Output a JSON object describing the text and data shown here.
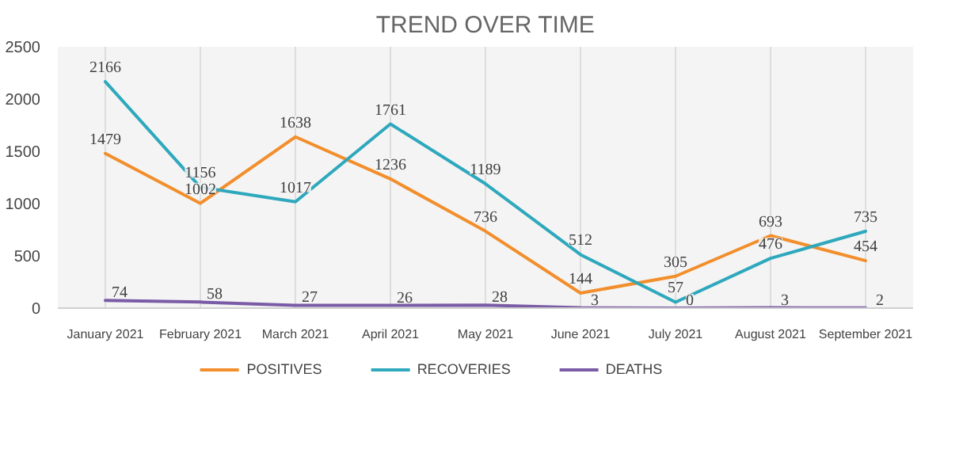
{
  "chart_data": {
    "type": "line",
    "title": "TREND OVER TIME",
    "categories": [
      "January 2021",
      "February 2021",
      "March 2021",
      "April 2021",
      "May 2021",
      "June 2021",
      "July 2021",
      "August 2021",
      "September 2021"
    ],
    "series": [
      {
        "name": "POSITIVES",
        "color": "#f28e2b",
        "values": [
          1479,
          1002,
          1638,
          1236,
          736,
          144,
          305,
          693,
          454
        ]
      },
      {
        "name": "RECOVERIES",
        "color": "#2ea8bd",
        "values": [
          2166,
          1156,
          1017,
          1761,
          1189,
          512,
          57,
          476,
          735
        ]
      },
      {
        "name": "DEATHS",
        "color": "#7a5ba6",
        "values": [
          74,
          58,
          27,
          26,
          28,
          3,
          0,
          3,
          2
        ]
      }
    ],
    "ylim": [
      0,
      2500
    ],
    "yticks": [
      0,
      500,
      1000,
      1500,
      2000,
      2500
    ],
    "grid": "x",
    "legend": "bottom",
    "data_labels": true,
    "marker": "none",
    "line_style": "solid"
  }
}
